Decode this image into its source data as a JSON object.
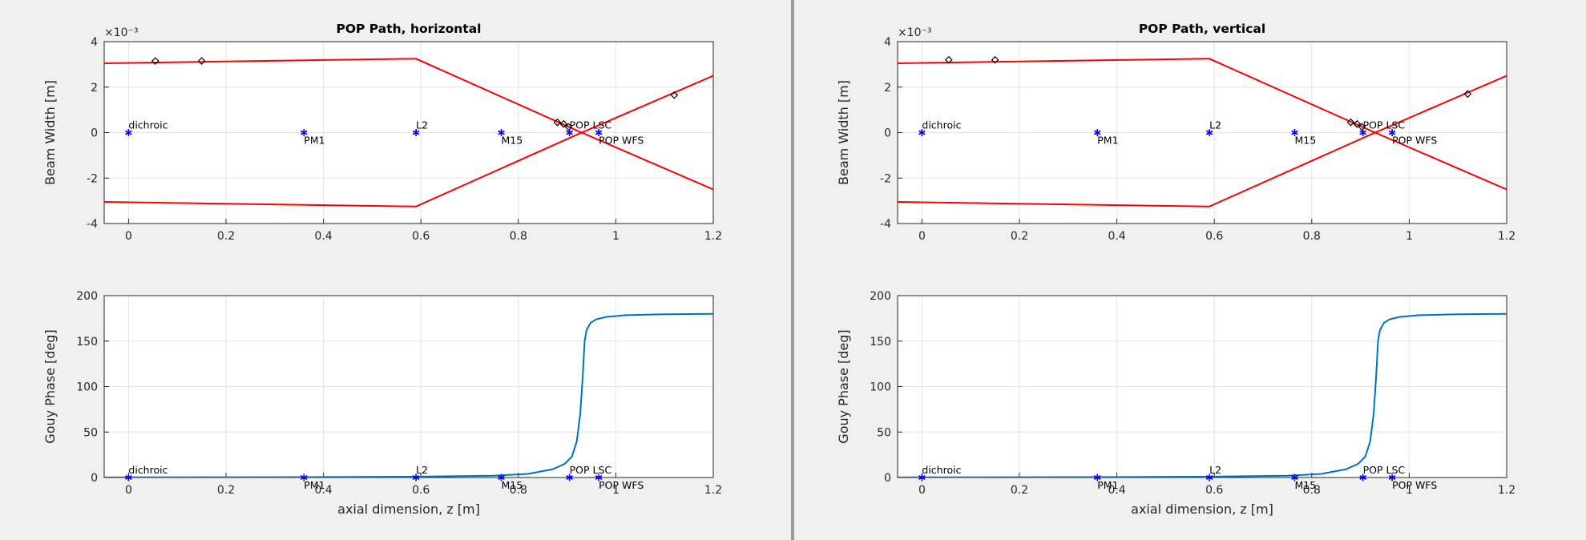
{
  "chart_data": [
    {
      "type": "line",
      "title": "POP Path, horizontal",
      "xlabel": "",
      "ylabel": "Beam Width [m]",
      "xlim": [
        -0.05,
        1.2
      ],
      "ylim": [
        -4,
        4
      ],
      "xticks": [
        "0",
        "0.2",
        "0.4",
        "0.6",
        "0.8",
        "1",
        "1.2"
      ],
      "yticks": [
        "-4",
        "-2",
        "0",
        "2",
        "4"
      ],
      "exponent_label": "×10⁻³",
      "grid": true,
      "series": [
        {
          "color": "#ff0000",
          "x": [
            -0.05,
            0.59,
            0.93,
            1.2
          ],
          "y": [
            3.05,
            3.25,
            0.0,
            2.5
          ]
        },
        {
          "color": "#ff0000",
          "x": [
            -0.05,
            0.59,
            0.93,
            1.2
          ],
          "y": [
            -3.05,
            -3.25,
            0.0,
            -2.5
          ]
        }
      ],
      "diamonds": {
        "color": "#000000",
        "x": [
          0.055,
          0.15,
          0.88,
          0.893,
          0.903,
          1.12
        ],
        "y": [
          3.15,
          3.15,
          0.45,
          0.38,
          0.25,
          1.65
        ]
      },
      "optics": [
        {
          "name": "dichroic",
          "x": 0.0,
          "label_pos": "above"
        },
        {
          "name": "PM1",
          "x": 0.36,
          "label_pos": "below"
        },
        {
          "name": "L2",
          "x": 0.59,
          "label_pos": "above"
        },
        {
          "name": "M15",
          "x": 0.765,
          "label_pos": "below"
        },
        {
          "name": "POP LSC",
          "x": 0.905,
          "label_pos": "above"
        },
        {
          "name": "POP WFS",
          "x": 0.965,
          "label_pos": "below"
        }
      ]
    },
    {
      "type": "line",
      "title": "",
      "xlabel": "axial dimension, z [m]",
      "ylabel": "Gouy Phase [deg]",
      "xlim": [
        -0.05,
        1.2
      ],
      "ylim": [
        0,
        200
      ],
      "xticks": [
        "0",
        "0.2",
        "0.4",
        "0.6",
        "0.8",
        "1",
        "1.2"
      ],
      "yticks": [
        "0",
        "50",
        "100",
        "150",
        "200"
      ],
      "grid": true,
      "series": [
        {
          "color": "#0072bd",
          "x": [
            -0.05,
            0.0,
            0.2,
            0.4,
            0.6,
            0.75,
            0.82,
            0.87,
            0.895,
            0.91,
            0.92,
            0.927,
            0.932,
            0.936,
            0.94,
            0.948,
            0.96,
            0.98,
            1.02,
            1.1,
            1.2
          ],
          "y": [
            0.1,
            0.2,
            0.3,
            0.5,
            1.0,
            2.0,
            4.0,
            9.0,
            15,
            23,
            40,
            70,
            110,
            150,
            162,
            170,
            174,
            176.5,
            178.5,
            179.5,
            180
          ]
        }
      ],
      "optics": [
        {
          "name": "dichroic",
          "x": 0.0,
          "label_pos": "above"
        },
        {
          "name": "PM1",
          "x": 0.36,
          "label_pos": "below"
        },
        {
          "name": "L2",
          "x": 0.59,
          "label_pos": "above"
        },
        {
          "name": "M15",
          "x": 0.765,
          "label_pos": "below"
        },
        {
          "name": "POP LSC",
          "x": 0.905,
          "label_pos": "above"
        },
        {
          "name": "POP WFS",
          "x": 0.965,
          "label_pos": "below"
        }
      ]
    },
    {
      "type": "line",
      "title": "POP Path, vertical",
      "xlabel": "",
      "ylabel": "Beam Width [m]",
      "xlim": [
        -0.05,
        1.2
      ],
      "ylim": [
        -4,
        4
      ],
      "xticks": [
        "0",
        "0.2",
        "0.4",
        "0.6",
        "0.8",
        "1",
        "1.2"
      ],
      "yticks": [
        "-4",
        "-2",
        "0",
        "2",
        "4"
      ],
      "exponent_label": "×10⁻³",
      "grid": true,
      "series": [
        {
          "color": "#ff0000",
          "x": [
            -0.05,
            0.59,
            0.93,
            1.2
          ],
          "y": [
            3.05,
            3.25,
            0.0,
            2.5
          ]
        },
        {
          "color": "#ff0000",
          "x": [
            -0.05,
            0.59,
            0.93,
            1.2
          ],
          "y": [
            -3.05,
            -3.25,
            0.0,
            -2.5
          ]
        }
      ],
      "diamonds": {
        "color": "#000000",
        "x": [
          0.055,
          0.15,
          0.88,
          0.893,
          0.903,
          1.12
        ],
        "y": [
          3.2,
          3.2,
          0.45,
          0.38,
          0.25,
          1.7
        ]
      },
      "optics": [
        {
          "name": "dichroic",
          "x": 0.0,
          "label_pos": "above"
        },
        {
          "name": "PM1",
          "x": 0.36,
          "label_pos": "below"
        },
        {
          "name": "L2",
          "x": 0.59,
          "label_pos": "above"
        },
        {
          "name": "M15",
          "x": 0.765,
          "label_pos": "below"
        },
        {
          "name": "POP LSC",
          "x": 0.905,
          "label_pos": "above"
        },
        {
          "name": "POP WFS",
          "x": 0.965,
          "label_pos": "below"
        }
      ]
    },
    {
      "type": "line",
      "title": "",
      "xlabel": "axial dimension, z [m]",
      "ylabel": "Gouy Phase [deg]",
      "xlim": [
        -0.05,
        1.2
      ],
      "ylim": [
        0,
        200
      ],
      "xticks": [
        "0",
        "0.2",
        "0.4",
        "0.6",
        "0.8",
        "1",
        "1.2"
      ],
      "yticks": [
        "0",
        "50",
        "100",
        "150",
        "200"
      ],
      "grid": true,
      "series": [
        {
          "color": "#0072bd",
          "x": [
            -0.05,
            0.0,
            0.2,
            0.4,
            0.6,
            0.75,
            0.82,
            0.87,
            0.895,
            0.91,
            0.92,
            0.927,
            0.932,
            0.936,
            0.94,
            0.948,
            0.96,
            0.98,
            1.02,
            1.1,
            1.2
          ],
          "y": [
            0.1,
            0.2,
            0.3,
            0.5,
            1.0,
            2.0,
            4.0,
            9.0,
            15,
            23,
            40,
            70,
            110,
            150,
            162,
            170,
            174,
            176.5,
            178.5,
            179.5,
            180
          ]
        }
      ],
      "optics": [
        {
          "name": "dichroic",
          "x": 0.0,
          "label_pos": "above"
        },
        {
          "name": "PM1",
          "x": 0.36,
          "label_pos": "below"
        },
        {
          "name": "L2",
          "x": 0.59,
          "label_pos": "above"
        },
        {
          "name": "M15",
          "x": 0.765,
          "label_pos": "below"
        },
        {
          "name": "POP LSC",
          "x": 0.905,
          "label_pos": "above"
        },
        {
          "name": "POP WFS",
          "x": 0.965,
          "label_pos": "below"
        }
      ]
    }
  ]
}
